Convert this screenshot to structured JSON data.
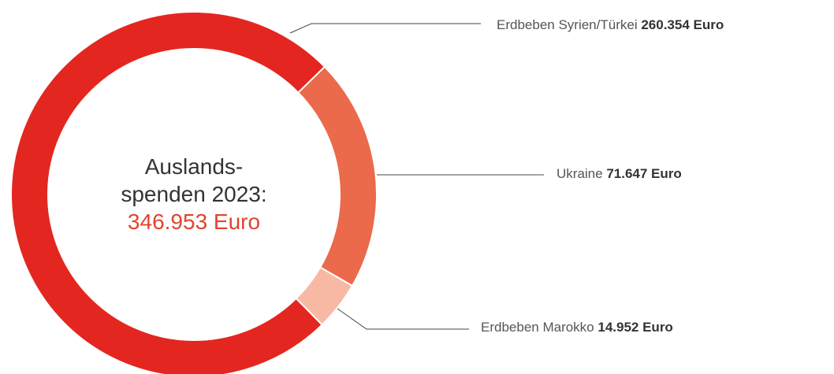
{
  "chart_data": {
    "type": "donut",
    "categories": [
      "Erdbeben Syrien/Türkei",
      "Ukraine",
      "Erdbeben Marokko"
    ],
    "values": [
      260354,
      71647,
      14952
    ],
    "value_labels": [
      "260.354 Euro",
      "71.647 Euro",
      "14.952 Euro"
    ],
    "colors": [
      "#e3261f",
      "#ea6a4b",
      "#f7b9a4"
    ],
    "center_text": [
      "Auslands-",
      "spenden 2023:"
    ],
    "center_total": "346.953 Euro"
  }
}
